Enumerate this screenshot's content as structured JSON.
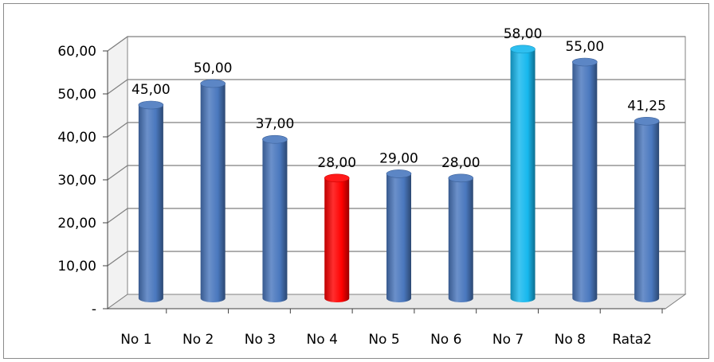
{
  "chart_data": {
    "type": "bar",
    "categories": [
      "No 1",
      "No 2",
      "No 3",
      "No 4",
      "No 5",
      "No 6",
      "No 7",
      "No 8",
      "Rata2"
    ],
    "values": [
      45.0,
      50.0,
      37.0,
      28.0,
      29.0,
      28.0,
      58.0,
      55.0,
      41.25
    ],
    "data_labels": [
      "45,00",
      "50,00",
      "37,00",
      "28,00",
      "29,00",
      "28,00",
      "58,00",
      "55,00",
      "41,25"
    ],
    "y_ticks": [
      0,
      10,
      20,
      30,
      40,
      50,
      60
    ],
    "y_tick_labels": [
      "-",
      "10,00",
      "20,00",
      "30,00",
      "40,00",
      "50,00",
      "60,00"
    ],
    "ylim": [
      0,
      60
    ],
    "grid": true,
    "legend": "none",
    "style": "3d-cylinder",
    "bar_colors": [
      "#4a78be",
      "#4a78be",
      "#4a78be",
      "#ff0000",
      "#4a78be",
      "#4a78be",
      "#17b8ee",
      "#4a78be",
      "#4a78be"
    ]
  }
}
